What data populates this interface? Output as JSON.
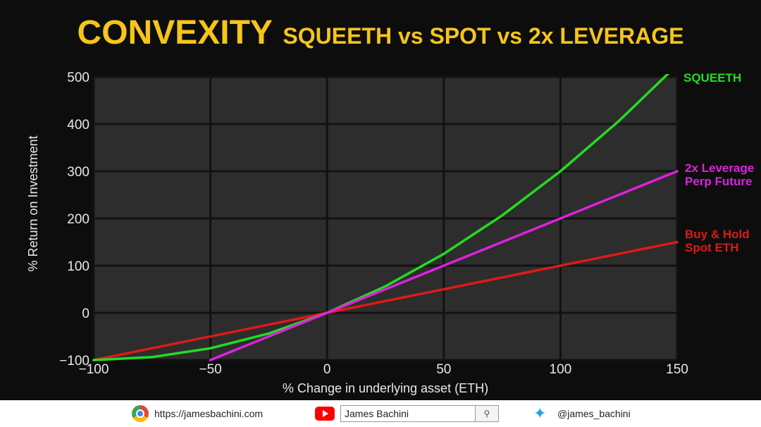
{
  "header": {
    "title_main": "CONVEXITY",
    "title_sub": "SQUEETH vs SPOT vs 2x LEVERAGE"
  },
  "colors": {
    "title": "#f5c518",
    "squeeth": "#22dd22",
    "leverage": "#dd22dd",
    "spot": "#dd1a1a",
    "plot_bg": "#2d2d2d",
    "grid": "#121212"
  },
  "chart_data": {
    "type": "line",
    "xlabel": "% Change in underlying asset (ETH)",
    "ylabel": "% Return on Investment",
    "xlim": [
      -100,
      150
    ],
    "ylim": [
      -100,
      500
    ],
    "x_ticks": [
      -100,
      -50,
      0,
      50,
      100,
      150
    ],
    "x_tick_labels": [
      "−100",
      "−50",
      "0",
      "50",
      "100",
      "150"
    ],
    "y_ticks": [
      -100,
      0,
      100,
      200,
      300,
      400,
      500
    ],
    "y_tick_labels": [
      "−100",
      "0",
      "100",
      "200",
      "300",
      "400",
      "500"
    ],
    "grid": true,
    "series": [
      {
        "name": "SQUEETH",
        "color": "#22dd22",
        "x": [
          -100,
          -75,
          -50,
          -25,
          0,
          25,
          50,
          75,
          100,
          125,
          150
        ],
        "y": [
          -100,
          -93.75,
          -75,
          -43.75,
          0,
          56.25,
          125,
          206.25,
          300,
          406.25,
          525
        ]
      },
      {
        "name": "2x Leverage Perp Future",
        "color": "#dd22dd",
        "x": [
          -50,
          150
        ],
        "y": [
          -100,
          300
        ]
      },
      {
        "name": "Buy & Hold Spot ETH",
        "color": "#dd1a1a",
        "x": [
          -100,
          150
        ],
        "y": [
          -100,
          150
        ]
      }
    ],
    "series_labels": [
      {
        "lines": [
          "SQUEETH"
        ],
        "color": "#22dd22"
      },
      {
        "lines": [
          "2x Leverage",
          "Perp Future"
        ],
        "color": "#dd22dd"
      },
      {
        "lines": [
          "Buy & Hold",
          "Spot ETH"
        ],
        "color": "#dd1a1a"
      }
    ]
  },
  "footer": {
    "website": "https://jamesbachini.com",
    "website_icon": "chrome-icon",
    "youtube_icon": "youtube-icon",
    "youtube_search": "James Bachini",
    "search_icon": "search-icon",
    "twitter_icon": "twitter-icon",
    "twitter_handle": "@james_bachini"
  }
}
